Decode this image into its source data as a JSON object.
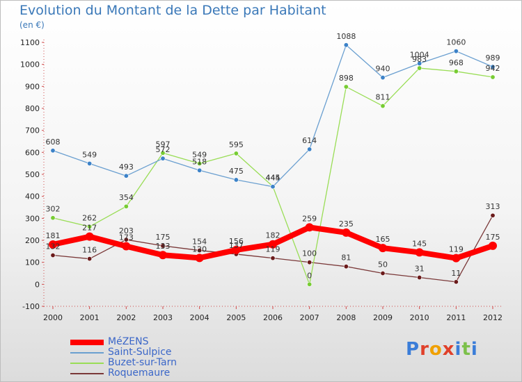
{
  "title": "Evolution du Montant de la Dette par Habitant",
  "subtitle": "(en €)",
  "logo": {
    "text": "Proxiti",
    "letter_colors": [
      "#3b7dd8",
      "#e0402a",
      "#f0a000",
      "#e0402a",
      "#3b7dd8",
      "#7cc04a",
      "#3b7dd8"
    ]
  },
  "chart_data": {
    "type": "line",
    "title": "Evolution du Montant de la Dette par Habitant",
    "subtitle": "(en €)",
    "categories": [
      "2000",
      "2001",
      "2002",
      "2003",
      "2004",
      "2005",
      "2006",
      "2007",
      "2008",
      "2009",
      "2010",
      "2011",
      "2012"
    ],
    "ylim": [
      -100,
      1100
    ],
    "yticks": [
      "-100",
      "0",
      "100",
      "200",
      "300",
      "400",
      "500",
      "600",
      "700",
      "800",
      "900",
      "1000",
      "1100"
    ],
    "grid": false,
    "legend_position": "bottom-left",
    "series": [
      {
        "name": "MéZENS",
        "color": "#ff0000",
        "marker_color": "#ff0000",
        "line_width": 8,
        "values": [
          181,
          217,
          173,
          133,
          120,
          156,
          182,
          259,
          235,
          165,
          145,
          119,
          175
        ],
        "labels": [
          "181",
          "217",
          "173",
          "133",
          "120",
          "156",
          "182",
          "259",
          "235",
          "165",
          "145",
          "119",
          "175"
        ]
      },
      {
        "name": "Saint-Sulpice",
        "color": "#6a9fd0",
        "marker_color": "#3c82c8",
        "line_width": 1.3,
        "values": [
          608,
          549,
          493,
          572,
          518,
          475,
          444,
          614,
          1088,
          940,
          1004,
          1060,
          989
        ],
        "labels": [
          "608",
          "549",
          "493",
          "572",
          "518",
          "475",
          "444",
          "614",
          "1088",
          "940",
          "1004",
          "1060",
          "989"
        ]
      },
      {
        "name": "Buzet-sur-Tarn",
        "color": "#99dd55",
        "marker_color": "#77cc33",
        "line_width": 1.3,
        "values": [
          302,
          262,
          354,
          597,
          549,
          595,
          445,
          0,
          898,
          811,
          983,
          968,
          942
        ],
        "labels": [
          "302",
          "262",
          "354",
          "597",
          "549",
          "595",
          "445",
          "0",
          "898",
          "811",
          "983",
          "968",
          "942"
        ]
      },
      {
        "name": "Roquemaure",
        "color": "#7a3838",
        "marker_color": "#6a1a1a",
        "line_width": 1.3,
        "values": [
          132,
          116,
          203,
          175,
          154,
          137,
          119,
          100,
          81,
          50,
          31,
          11,
          313
        ],
        "labels": [
          "132",
          "116",
          "203",
          "175",
          "154",
          "137",
          "119",
          "100",
          "81",
          "50",
          "31",
          "11",
          "313"
        ]
      }
    ]
  }
}
